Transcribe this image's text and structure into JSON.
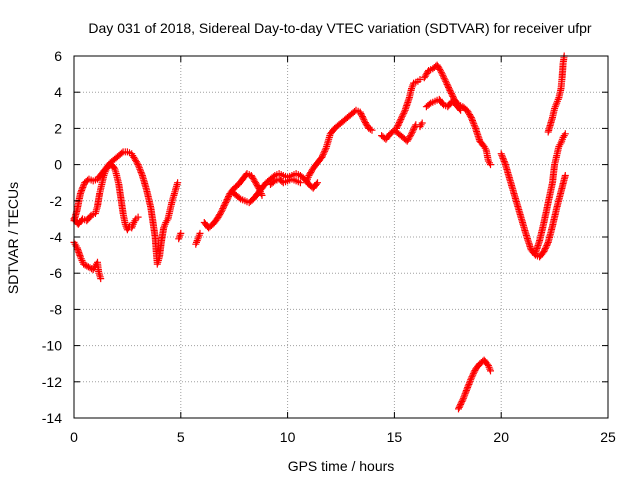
{
  "chart_data": {
    "type": "scatter",
    "title": "Day 031 of 2018, Sidereal Day-to-day VTEC variation (SDTVAR) for receiver ufpr",
    "xlabel": "GPS time / hours",
    "ylabel": "SDTVAR / TECUs",
    "xlim": [
      0,
      25
    ],
    "ylim": [
      -14,
      6
    ],
    "xticks": [
      0,
      5,
      10,
      15,
      20,
      25
    ],
    "yticks": [
      6,
      4,
      2,
      0,
      -2,
      -4,
      -6,
      -8,
      -10,
      -12,
      -14
    ],
    "grid": true,
    "marker": "+",
    "color": "#ff0000",
    "series": [
      {
        "name": "",
        "segments": [
          [
            [
              0.0,
              -3.1
            ],
            [
              0.15,
              -2.5
            ],
            [
              0.3,
              -1.6
            ],
            [
              0.5,
              -1.0
            ],
            [
              0.7,
              -0.8
            ],
            [
              0.9,
              -0.9
            ],
            [
              1.1,
              -0.8
            ],
            [
              1.3,
              -0.5
            ],
            [
              1.5,
              -0.2
            ],
            [
              1.7,
              0.1
            ],
            [
              1.9,
              0.3
            ],
            [
              2.1,
              0.5
            ],
            [
              2.3,
              0.7
            ],
            [
              2.5,
              0.7
            ],
            [
              2.7,
              0.6
            ],
            [
              2.8,
              0.4
            ],
            [
              3.0,
              0.0
            ],
            [
              3.2,
              -0.6
            ],
            [
              3.4,
              -1.4
            ],
            [
              3.6,
              -2.4
            ],
            [
              3.7,
              -3.2
            ],
            [
              3.8,
              -4.0
            ],
            [
              3.85,
              -4.8
            ],
            [
              3.9,
              -5.5
            ],
            [
              4.0,
              -5.1
            ],
            [
              4.1,
              -4.2
            ],
            [
              4.2,
              -3.5
            ],
            [
              4.3,
              -3.2
            ],
            [
              4.4,
              -3.0
            ],
            [
              4.5,
              -2.5
            ],
            [
              4.6,
              -2.0
            ],
            [
              4.7,
              -1.6
            ],
            [
              4.8,
              -1.2
            ],
            [
              4.85,
              -1.0
            ]
          ],
          [
            [
              0.0,
              -3.0
            ],
            [
              0.2,
              -3.3
            ],
            [
              0.4,
              -3.0
            ],
            [
              0.6,
              -3.1
            ],
            [
              0.8,
              -2.8
            ],
            [
              1.0,
              -2.7
            ],
            [
              1.1,
              -2.3
            ],
            [
              1.2,
              -1.6
            ],
            [
              1.3,
              -1.1
            ],
            [
              1.4,
              -0.6
            ],
            [
              1.5,
              -0.3
            ],
            [
              1.6,
              -0.1
            ],
            [
              1.75,
              0.0
            ],
            [
              1.9,
              -0.2
            ],
            [
              2.0,
              -0.6
            ],
            [
              2.1,
              -1.1
            ],
            [
              2.2,
              -1.9
            ],
            [
              2.3,
              -2.7
            ],
            [
              2.4,
              -3.3
            ],
            [
              2.5,
              -3.6
            ],
            [
              2.6,
              -3.4
            ],
            [
              2.7,
              -3.5
            ],
            [
              2.8,
              -3.2
            ],
            [
              2.9,
              -3.0
            ],
            [
              3.0,
              -2.9
            ]
          ],
          [
            [
              0.0,
              -4.3
            ],
            [
              0.15,
              -4.6
            ],
            [
              0.3,
              -5.1
            ],
            [
              0.45,
              -5.5
            ],
            [
              0.6,
              -5.6
            ],
            [
              0.75,
              -5.7
            ],
            [
              0.9,
              -5.8
            ],
            [
              1.0,
              -5.6
            ],
            [
              1.1,
              -5.4
            ],
            [
              1.15,
              -5.9
            ],
            [
              1.25,
              -6.3
            ]
          ],
          [
            [
              4.9,
              -4.1
            ],
            [
              5.0,
              -3.8
            ]
          ],
          [
            [
              5.7,
              -4.4
            ],
            [
              5.8,
              -4.1
            ],
            [
              5.9,
              -3.8
            ]
          ],
          [
            [
              6.1,
              -3.2
            ],
            [
              6.3,
              -3.5
            ],
            [
              6.5,
              -3.3
            ],
            [
              6.7,
              -3.0
            ],
            [
              6.9,
              -2.6
            ],
            [
              7.1,
              -2.1
            ],
            [
              7.3,
              -1.6
            ],
            [
              7.5,
              -1.3
            ],
            [
              7.7,
              -1.1
            ],
            [
              7.9,
              -0.8
            ],
            [
              8.1,
              -0.5
            ],
            [
              8.3,
              -0.6
            ],
            [
              8.5,
              -1.0
            ],
            [
              8.7,
              -1.4
            ],
            [
              8.8,
              -1.7
            ]
          ],
          [
            [
              7.4,
              -1.5
            ],
            [
              7.6,
              -1.7
            ],
            [
              7.8,
              -1.9
            ],
            [
              8.0,
              -2.0
            ],
            [
              8.2,
              -2.1
            ],
            [
              8.4,
              -1.9
            ],
            [
              8.6,
              -1.6
            ],
            [
              8.8,
              -1.3
            ],
            [
              9.0,
              -1.0
            ],
            [
              9.2,
              -0.8
            ],
            [
              9.4,
              -0.6
            ],
            [
              9.6,
              -0.5
            ],
            [
              9.8,
              -0.6
            ],
            [
              10.0,
              -0.7
            ],
            [
              10.2,
              -0.6
            ],
            [
              10.4,
              -0.5
            ],
            [
              10.6,
              -0.6
            ],
            [
              10.8,
              -0.8
            ],
            [
              11.0,
              -1.1
            ],
            [
              11.2,
              -1.3
            ],
            [
              11.4,
              -1.0
            ]
          ],
          [
            [
              9.2,
              -1.1
            ],
            [
              9.4,
              -0.9
            ],
            [
              9.6,
              -0.8
            ],
            [
              9.8,
              -1.0
            ],
            [
              10.0,
              -0.9
            ],
            [
              10.2,
              -0.8
            ],
            [
              10.4,
              -0.9
            ],
            [
              10.6,
              -1.0
            ]
          ],
          [
            [
              10.9,
              -0.9
            ],
            [
              11.0,
              -0.6
            ],
            [
              11.2,
              -0.2
            ],
            [
              11.4,
              0.1
            ],
            [
              11.6,
              0.4
            ],
            [
              11.8,
              0.9
            ],
            [
              11.9,
              1.3
            ],
            [
              12.0,
              1.7
            ],
            [
              12.2,
              2.0
            ],
            [
              12.4,
              2.2
            ],
            [
              12.6,
              2.4
            ],
            [
              12.8,
              2.6
            ],
            [
              13.0,
              2.8
            ],
            [
              13.2,
              3.0
            ],
            [
              13.4,
              2.9
            ],
            [
              13.6,
              2.4
            ],
            [
              13.8,
              2.0
            ],
            [
              13.95,
              1.9
            ]
          ],
          [
            [
              14.4,
              1.6
            ],
            [
              14.6,
              1.4
            ],
            [
              14.8,
              1.7
            ],
            [
              15.0,
              1.9
            ],
            [
              15.2,
              1.7
            ],
            [
              15.4,
              1.5
            ],
            [
              15.6,
              1.3
            ],
            [
              15.8,
              1.7
            ],
            [
              16.0,
              2.2
            ]
          ],
          [
            [
              15.1,
              2.0
            ],
            [
              15.3,
              2.5
            ],
            [
              15.5,
              3.0
            ],
            [
              15.7,
              3.7
            ],
            [
              15.8,
              4.2
            ],
            [
              15.9,
              4.5
            ],
            [
              16.1,
              4.6
            ],
            [
              16.2,
              4.7
            ]
          ],
          [
            [
              16.2,
              2.1
            ],
            [
              16.3,
              2.3
            ]
          ],
          [
            [
              16.4,
              4.8
            ],
            [
              16.6,
              5.2
            ],
            [
              16.8,
              5.3
            ],
            [
              17.0,
              5.5
            ],
            [
              17.2,
              5.1
            ],
            [
              17.4,
              4.6
            ],
            [
              17.6,
              4.1
            ],
            [
              17.8,
              3.6
            ],
            [
              18.0,
              3.3
            ],
            [
              18.2,
              3.2
            ],
            [
              18.4,
              3.0
            ],
            [
              18.6,
              2.6
            ],
            [
              18.8,
              2.0
            ],
            [
              19.0,
              1.3
            ],
            [
              19.2,
              1.0
            ],
            [
              19.3,
              0.8
            ],
            [
              19.4,
              0.2
            ],
            [
              19.5,
              0.0
            ]
          ],
          [
            [
              16.5,
              3.2
            ],
            [
              16.7,
              3.4
            ],
            [
              16.9,
              3.5
            ],
            [
              17.1,
              3.6
            ],
            [
              17.3,
              3.3
            ],
            [
              17.5,
              3.2
            ],
            [
              17.7,
              3.5
            ],
            [
              17.9,
              3.3
            ],
            [
              18.1,
              3.0
            ]
          ],
          [
            [
              18.0,
              -13.5
            ],
            [
              18.2,
              -13.0
            ],
            [
              18.4,
              -12.4
            ],
            [
              18.6,
              -11.8
            ],
            [
              18.8,
              -11.3
            ],
            [
              19.0,
              -11.0
            ],
            [
              19.2,
              -10.8
            ],
            [
              19.4,
              -11.1
            ],
            [
              19.5,
              -11.4
            ]
          ],
          [
            [
              20.0,
              0.6
            ],
            [
              20.2,
              0.0
            ],
            [
              20.4,
              -0.8
            ],
            [
              20.6,
              -1.6
            ],
            [
              20.8,
              -2.4
            ],
            [
              21.0,
              -3.2
            ],
            [
              21.2,
              -4.0
            ],
            [
              21.4,
              -4.7
            ],
            [
              21.6,
              -5.0
            ],
            [
              21.8,
              -5.1
            ],
            [
              22.0,
              -4.8
            ],
            [
              22.2,
              -4.3
            ],
            [
              22.4,
              -3.4
            ],
            [
              22.6,
              -2.4
            ],
            [
              22.8,
              -1.5
            ],
            [
              23.0,
              -0.6
            ]
          ],
          [
            [
              21.6,
              -4.9
            ],
            [
              21.8,
              -4.2
            ],
            [
              22.0,
              -3.2
            ],
            [
              22.2,
              -2.1
            ],
            [
              22.4,
              -1.0
            ],
            [
              22.5,
              0.0
            ],
            [
              22.6,
              0.5
            ],
            [
              22.7,
              1.0
            ],
            [
              22.8,
              1.2
            ],
            [
              22.9,
              1.5
            ],
            [
              23.0,
              1.7
            ]
          ],
          [
            [
              22.2,
              1.8
            ],
            [
              22.4,
              2.6
            ],
            [
              22.5,
              3.1
            ],
            [
              22.6,
              3.4
            ],
            [
              22.7,
              3.7
            ],
            [
              22.8,
              4.2
            ],
            [
              22.85,
              4.8
            ],
            [
              22.9,
              5.6
            ],
            [
              22.95,
              6.0
            ]
          ]
        ]
      }
    ]
  }
}
